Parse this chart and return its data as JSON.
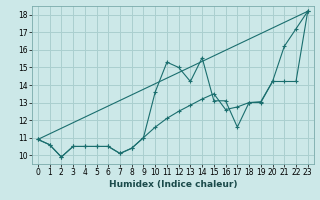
{
  "xlabel": "Humidex (Indice chaleur)",
  "background_color": "#cce8e8",
  "grid_color": "#aacfcf",
  "line_color": "#1a6e6e",
  "xlim": [
    -0.5,
    23.5
  ],
  "ylim": [
    9.5,
    18.5
  ],
  "xticks": [
    0,
    1,
    2,
    3,
    4,
    5,
    6,
    7,
    8,
    9,
    10,
    11,
    12,
    13,
    14,
    15,
    16,
    17,
    18,
    19,
    20,
    21,
    22,
    23
  ],
  "yticks": [
    10,
    11,
    12,
    13,
    14,
    15,
    16,
    17,
    18
  ],
  "line1_x": [
    0,
    1,
    2,
    3,
    4,
    5,
    6,
    7,
    8,
    9,
    10,
    11,
    12,
    13,
    14,
    15,
    16,
    17,
    18,
    19,
    20,
    21,
    22,
    23
  ],
  "line1_y": [
    10.9,
    10.6,
    9.9,
    10.5,
    10.5,
    10.5,
    10.5,
    10.1,
    10.4,
    11.0,
    13.6,
    15.3,
    15.0,
    14.2,
    15.55,
    13.1,
    13.1,
    11.6,
    13.0,
    13.0,
    14.2,
    16.2,
    17.2,
    18.2
  ],
  "line2_x": [
    0,
    23
  ],
  "line2_y": [
    10.9,
    18.2
  ],
  "line3_x": [
    0,
    1,
    2,
    3,
    4,
    5,
    6,
    7,
    8,
    9,
    10,
    11,
    12,
    13,
    14,
    15,
    16,
    17,
    18,
    19,
    20,
    21,
    22,
    23
  ],
  "line3_y": [
    10.9,
    10.6,
    9.9,
    10.5,
    10.5,
    10.5,
    10.5,
    10.1,
    10.4,
    11.0,
    11.6,
    12.1,
    12.5,
    12.85,
    13.2,
    13.5,
    12.6,
    12.75,
    13.0,
    13.05,
    14.2,
    14.2,
    14.2,
    18.2
  ]
}
